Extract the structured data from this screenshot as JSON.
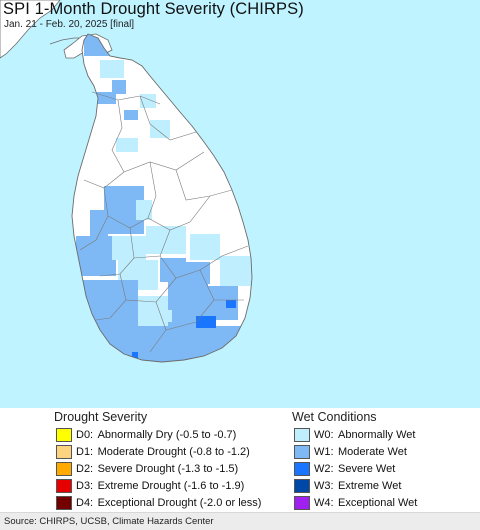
{
  "title": "SPI 1-Month Drought Severity (CHIRPS)",
  "subtitle": "Jan. 21 - Feb. 20, 2025 [final]",
  "colors": {
    "water": "#bff3ff",
    "land": "#ffffff",
    "boundary": "#6b6b6b"
  },
  "legend": {
    "drought": {
      "heading": "Drought Severity",
      "items": [
        {
          "code": "D0:",
          "label": "Abnormally Dry (-0.5 to -0.7)",
          "color": "#ffff00"
        },
        {
          "code": "D1:",
          "label": "Moderate Drought (-0.8 to -1.2)",
          "color": "#fcd37f"
        },
        {
          "code": "D2:",
          "label": "Severe Drought (-1.3 to -1.5)",
          "color": "#ffaa00"
        },
        {
          "code": "D3:",
          "label": "Extreme Drought (-1.6 to -1.9)",
          "color": "#e60000"
        },
        {
          "code": "D4:",
          "label": "Exceptional Drought (-2.0 or less)",
          "color": "#730000"
        }
      ]
    },
    "wet": {
      "heading": "Wet Conditions",
      "items": [
        {
          "code": "W0:",
          "label": "Abnormally Wet",
          "color": "#bfeeff"
        },
        {
          "code": "W1:",
          "label": "Moderate Wet",
          "color": "#7eb9f5"
        },
        {
          "code": "W2:",
          "label": "Severe Wet",
          "color": "#1a75ff"
        },
        {
          "code": "W3:",
          "label": "Extreme Wet",
          "color": "#0048a8"
        },
        {
          "code": "W4:",
          "label": "Exceptional Wet",
          "color": "#a020f0"
        }
      ]
    }
  },
  "footer": "Source: CHIRPS, UCSB, Climate Hazards Center"
}
